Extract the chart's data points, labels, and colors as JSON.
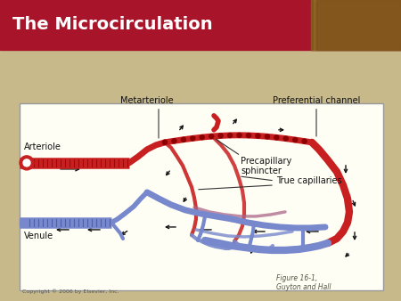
{
  "title": "The Microcirculation",
  "title_color": "#FFFFFF",
  "title_bg_color": "#A8152A",
  "slide_bg": "#C8B98A",
  "figure_label": "Figure 16-1,\nGuyton and Hall",
  "copyright": "Copyright © 2006 by Elsevier, Inc.",
  "labels": {
    "arteriole": "Arteriole",
    "metarteriole": "Metarteriole",
    "preferential_channel": "Preferential channel",
    "precapillary_sphincter": "Precapillary\nsphincter",
    "true_capillaries": "True capillaries",
    "venule": "Venule"
  },
  "arterial_color": "#C82020",
  "venous_color": "#7788CC",
  "arrow_color": "#111111",
  "diagram_bg": "#FFFEF5",
  "diagram_border": "#888888",
  "title_fontsize": 14,
  "label_fontsize": 7
}
